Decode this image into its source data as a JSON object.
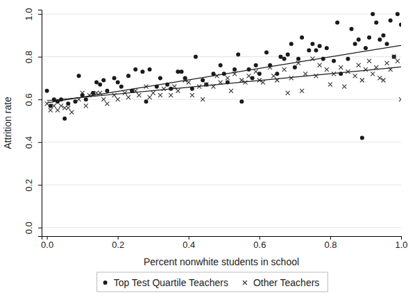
{
  "chart_data": {
    "type": "scatter",
    "x_label": "Percent nonwhite students in school",
    "y_label": "Attrition rate",
    "xlim": [
      -0.015,
      1.0
    ],
    "ylim": [
      -0.04,
      1.02
    ],
    "xticks": [
      {
        "value": 0,
        "label": "0.0"
      },
      {
        "value": 0.2,
        "label": "0.2"
      },
      {
        "value": 0.4,
        "label": "0.4"
      },
      {
        "value": 0.6,
        "label": "0.6"
      },
      {
        "value": 0.8,
        "label": "0.8"
      },
      {
        "value": 1.0,
        "label": "1.0"
      }
    ],
    "yticks": [
      {
        "value": 0,
        "label": "0.0"
      },
      {
        "value": 0.2,
        "label": "0.2"
      },
      {
        "value": 0.4,
        "label": "0.4"
      },
      {
        "value": 0.6,
        "label": "0.6"
      },
      {
        "value": 0.8,
        "label": "0.8"
      },
      {
        "value": 1.0,
        "label": "1.0"
      }
    ],
    "grid": true,
    "legend": "bottom",
    "series": [
      {
        "name": "Top Test Quartile Teachers",
        "type": "scatter",
        "marker": "circle",
        "color": "#1a1a1a",
        "x": [
          0.0,
          0.01,
          0.02,
          0.03,
          0.04,
          0.05,
          0.06,
          0.08,
          0.09,
          0.1,
          0.11,
          0.13,
          0.14,
          0.15,
          0.16,
          0.17,
          0.19,
          0.2,
          0.21,
          0.23,
          0.24,
          0.25,
          0.27,
          0.28,
          0.29,
          0.31,
          0.32,
          0.34,
          0.35,
          0.37,
          0.38,
          0.39,
          0.41,
          0.42,
          0.44,
          0.45,
          0.47,
          0.49,
          0.5,
          0.51,
          0.53,
          0.54,
          0.55,
          0.57,
          0.58,
          0.59,
          0.6,
          0.62,
          0.63,
          0.65,
          0.66,
          0.67,
          0.68,
          0.69,
          0.7,
          0.71,
          0.72,
          0.74,
          0.75,
          0.76,
          0.77,
          0.78,
          0.79,
          0.81,
          0.82,
          0.83,
          0.85,
          0.86,
          0.87,
          0.88,
          0.89,
          0.9,
          0.91,
          0.92,
          0.93,
          0.94,
          0.95,
          0.96,
          0.97,
          0.98,
          0.99,
          1.0
        ],
        "values": [
          0.64,
          0.57,
          0.6,
          0.59,
          0.6,
          0.51,
          0.58,
          0.59,
          0.71,
          0.62,
          0.6,
          0.63,
          0.68,
          0.67,
          0.69,
          0.64,
          0.7,
          0.68,
          0.66,
          0.71,
          0.64,
          0.74,
          0.73,
          0.59,
          0.74,
          0.66,
          0.7,
          0.67,
          0.65,
          0.73,
          0.73,
          0.7,
          0.65,
          0.8,
          0.69,
          0.67,
          0.72,
          0.76,
          0.72,
          0.68,
          0.74,
          0.81,
          0.59,
          0.74,
          0.7,
          0.76,
          0.72,
          0.82,
          0.76,
          0.72,
          0.8,
          0.79,
          0.81,
          0.86,
          0.75,
          0.79,
          0.89,
          0.83,
          0.86,
          0.83,
          0.85,
          0.79,
          0.84,
          0.78,
          0.96,
          0.72,
          0.79,
          0.93,
          0.86,
          0.88,
          0.42,
          0.84,
          0.89,
          1.0,
          0.96,
          0.88,
          0.9,
          0.86,
          0.97,
          0.8,
          1.0,
          0.95
        ]
      },
      {
        "name": "Other Teachers",
        "type": "scatter",
        "marker": "x",
        "color": "#333333",
        "x": [
          0.0,
          0.01,
          0.02,
          0.03,
          0.04,
          0.05,
          0.06,
          0.07,
          0.09,
          0.1,
          0.11,
          0.12,
          0.14,
          0.15,
          0.16,
          0.17,
          0.19,
          0.2,
          0.22,
          0.23,
          0.25,
          0.26,
          0.28,
          0.29,
          0.3,
          0.32,
          0.33,
          0.35,
          0.36,
          0.37,
          0.39,
          0.4,
          0.41,
          0.43,
          0.44,
          0.45,
          0.47,
          0.48,
          0.49,
          0.51,
          0.52,
          0.53,
          0.55,
          0.56,
          0.57,
          0.59,
          0.6,
          0.61,
          0.63,
          0.64,
          0.65,
          0.67,
          0.68,
          0.69,
          0.71,
          0.72,
          0.73,
          0.75,
          0.76,
          0.77,
          0.79,
          0.8,
          0.81,
          0.83,
          0.84,
          0.85,
          0.87,
          0.88,
          0.89,
          0.9,
          0.91,
          0.92,
          0.93,
          0.94,
          0.95,
          0.96,
          0.97,
          0.98,
          0.99,
          1.0
        ],
        "values": [
          0.58,
          0.55,
          0.57,
          0.55,
          0.57,
          0.56,
          0.56,
          0.54,
          0.6,
          0.63,
          0.57,
          0.62,
          0.63,
          0.63,
          0.6,
          0.58,
          0.62,
          0.6,
          0.63,
          0.61,
          0.64,
          0.62,
          0.66,
          0.61,
          0.63,
          0.62,
          0.65,
          0.62,
          0.66,
          0.64,
          0.69,
          0.68,
          0.62,
          0.66,
          0.6,
          0.67,
          0.66,
          0.71,
          0.68,
          0.7,
          0.64,
          0.72,
          0.69,
          0.68,
          0.71,
          0.73,
          0.69,
          0.68,
          0.75,
          0.71,
          0.69,
          0.74,
          0.63,
          0.7,
          0.77,
          0.64,
          0.72,
          0.79,
          0.71,
          0.76,
          0.74,
          0.67,
          0.72,
          0.75,
          0.66,
          0.73,
          0.71,
          0.76,
          0.69,
          0.74,
          0.78,
          0.72,
          0.75,
          0.7,
          0.69,
          0.77,
          0.74,
          0.8,
          0.78,
          0.6
        ]
      },
      {
        "type": "line",
        "line_style": "solid",
        "color": "#1a1a1a",
        "x": [
          0,
          1.0
        ],
        "values": [
          0.584,
          0.853
        ]
      },
      {
        "type": "line",
        "line_style": "solid",
        "color": "#1a1a1a",
        "x": [
          0,
          1.0
        ],
        "values": [
          0.594,
          0.752
        ]
      }
    ]
  }
}
